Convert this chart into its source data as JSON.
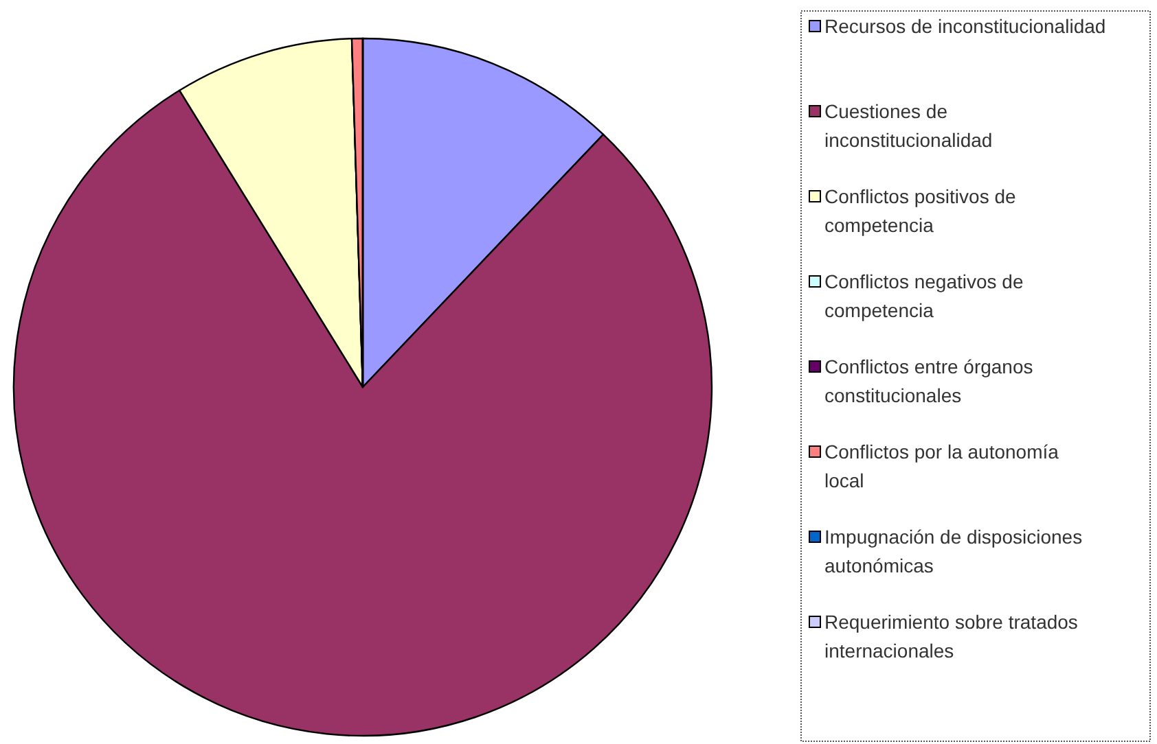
{
  "chart_data": {
    "type": "pie",
    "categories": [
      "Recursos de inconstitucionalidad",
      "Cuestiones de inconstitucionalidad",
      "Conflictos positivos de competencia",
      "Conflictos negativos de competencia",
      "Conflictos entre órganos constitucionales",
      "Conflictos por la autonomía local",
      "Impugnación de disposiciones autonómicas",
      "Requerimiento sobre tratados internacionales"
    ],
    "values": [
      12.1,
      79.1,
      8.3,
      0,
      0,
      0.5,
      0,
      0
    ],
    "colors": [
      "#9999ff",
      "#993366",
      "#ffffcc",
      "#ccffff",
      "#660066",
      "#ff8080",
      "#0066cc",
      "#ccccff"
    ],
    "legend": "right"
  }
}
